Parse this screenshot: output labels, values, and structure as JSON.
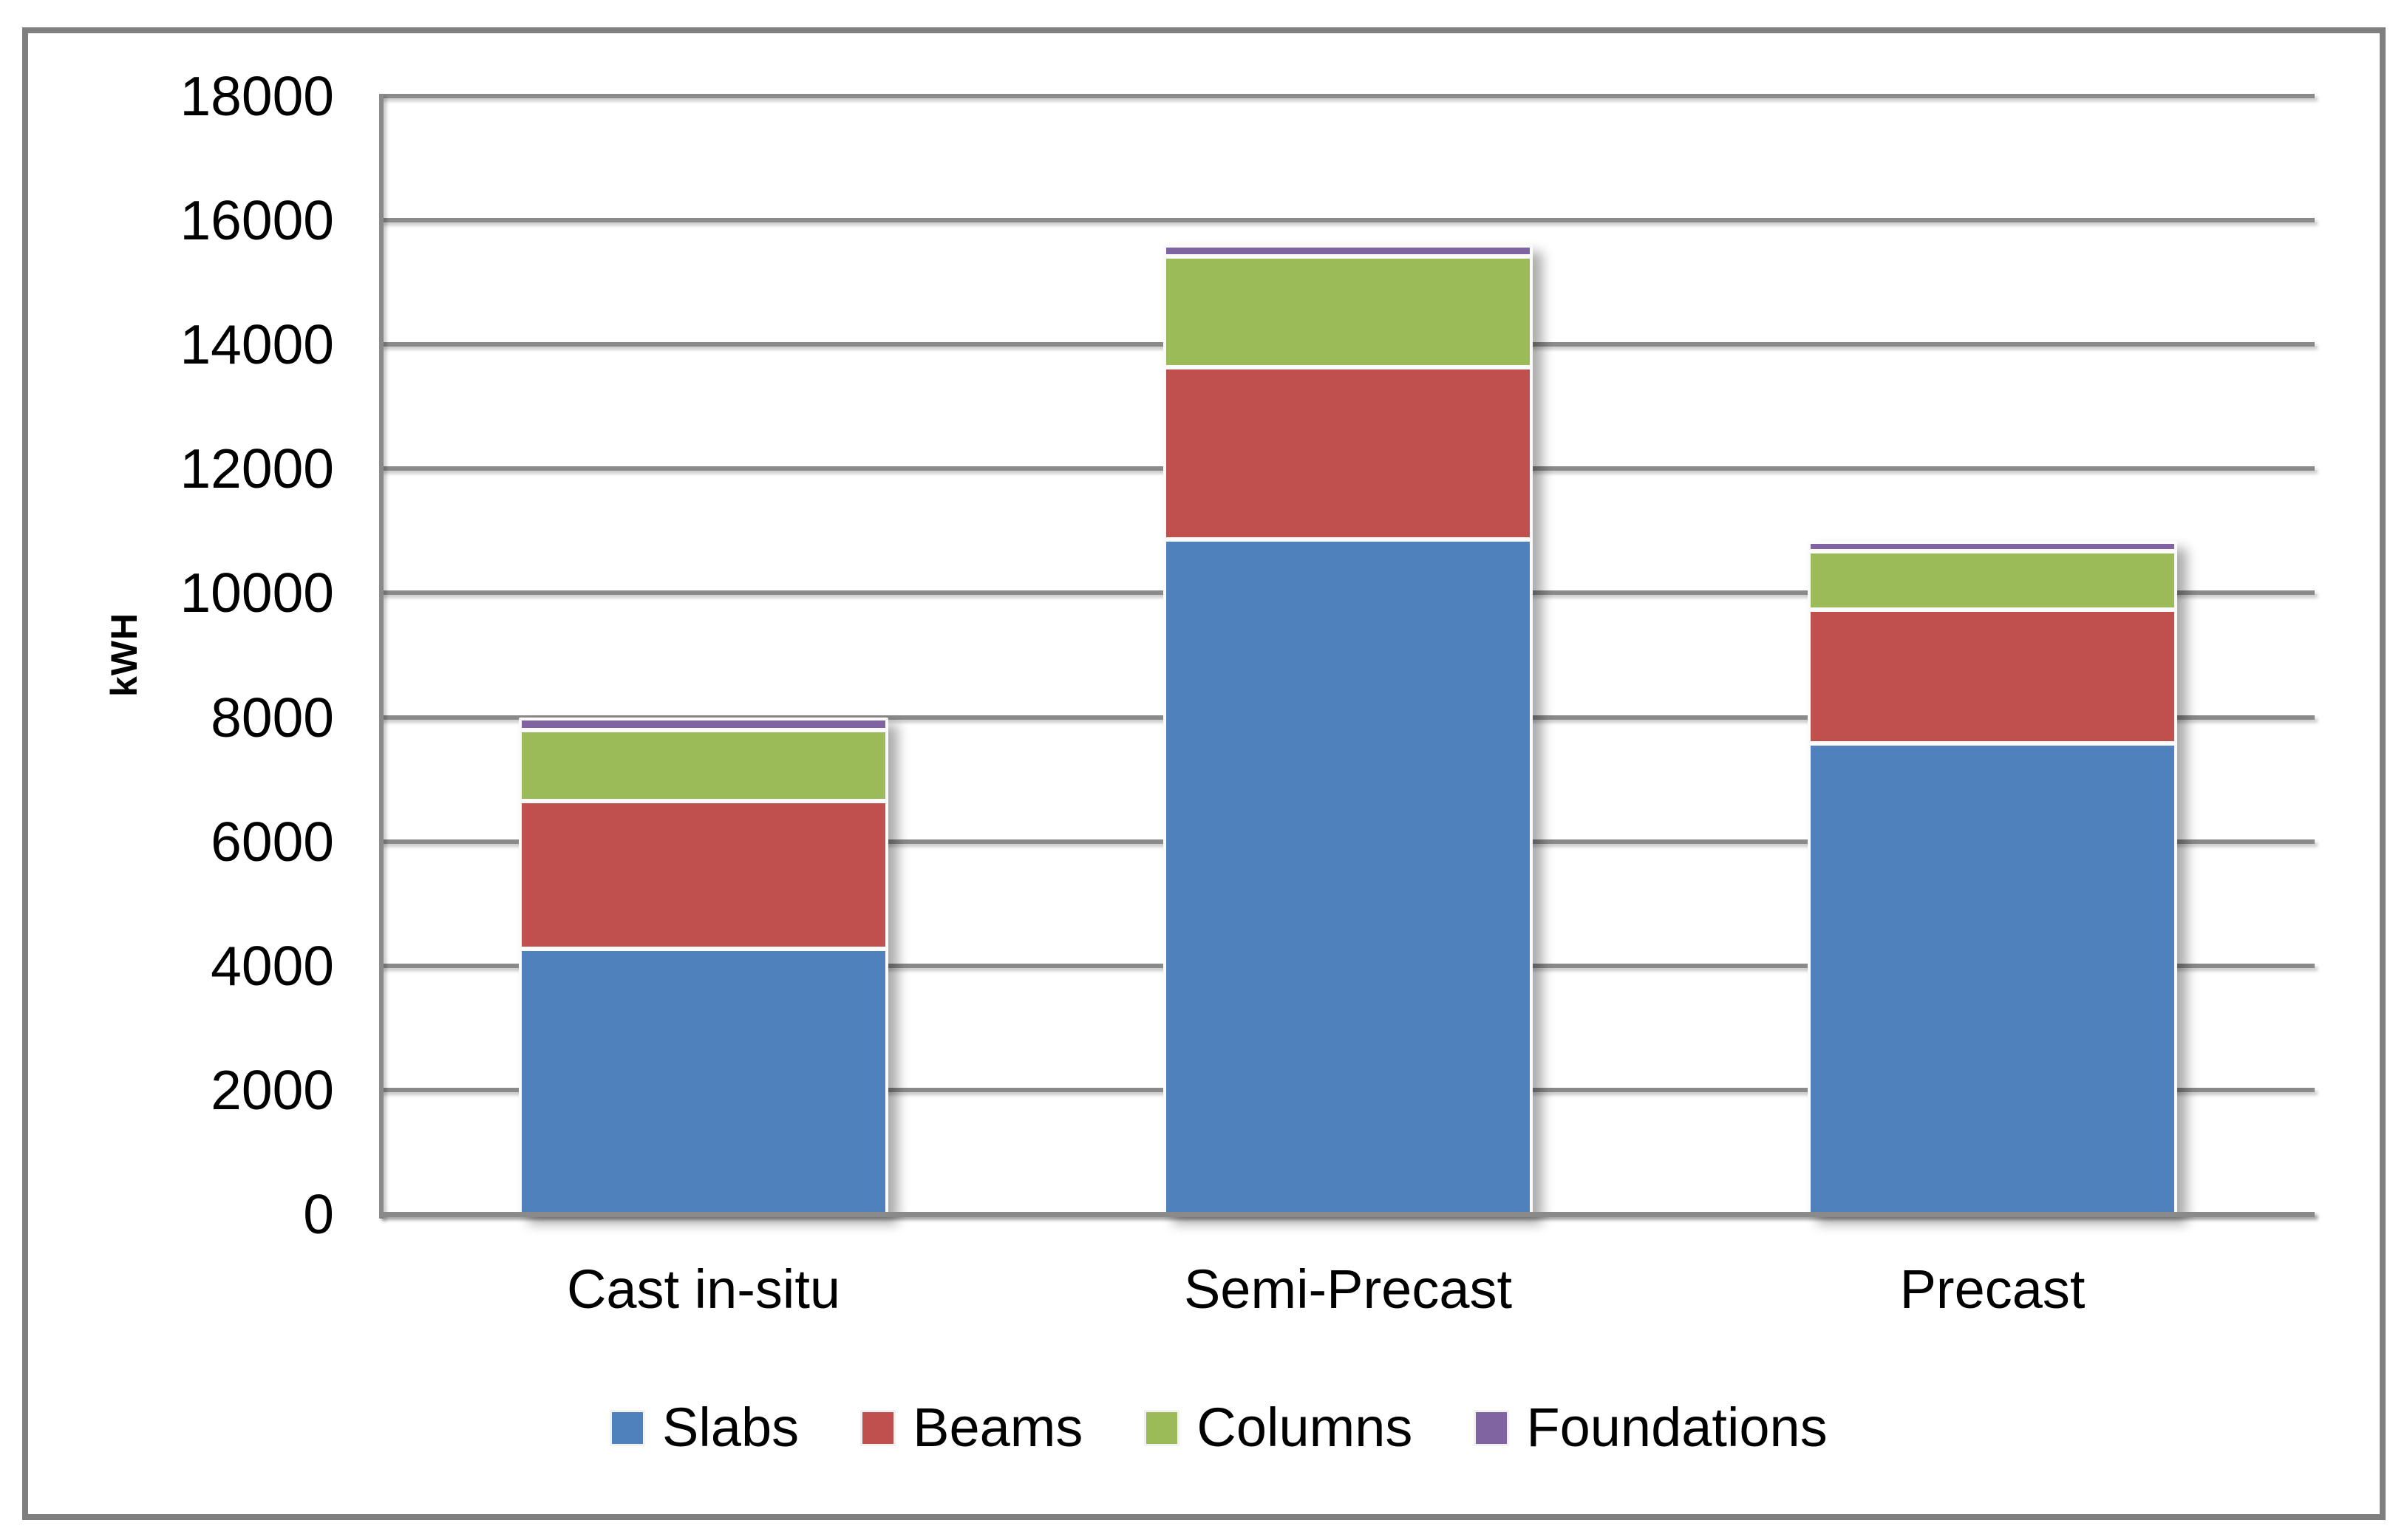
{
  "chart_data": {
    "type": "bar",
    "stacked": true,
    "categories": [
      "Cast in-situ",
      "Semi-Precast",
      "Precast"
    ],
    "series": [
      {
        "name": "Slabs",
        "color": "#4F81BD",
        "values": [
          4300,
          10890,
          7600
        ]
      },
      {
        "name": "Beams",
        "color": "#C0504D",
        "values": [
          2370,
          2770,
          2150
        ]
      },
      {
        "name": "Columns",
        "color": "#9BBB59",
        "values": [
          1150,
          1780,
          950
        ]
      },
      {
        "name": "Foundations",
        "color": "#8064A2",
        "values": [
          120,
          110,
          80
        ]
      }
    ],
    "xlabel": "",
    "ylabel": "kWH",
    "ylim": [
      0,
      18000
    ],
    "yticks": [
      0,
      2000,
      4000,
      6000,
      8000,
      10000,
      12000,
      14000,
      16000,
      18000
    ],
    "grid": "horizontal",
    "legend_position": "bottom",
    "colors": {
      "gridline": "#8A8A8A",
      "axis_line": "#8A8A8A",
      "frame_border": "#7F7F7F",
      "text": "#000000",
      "background": "#FFFFFF"
    }
  }
}
